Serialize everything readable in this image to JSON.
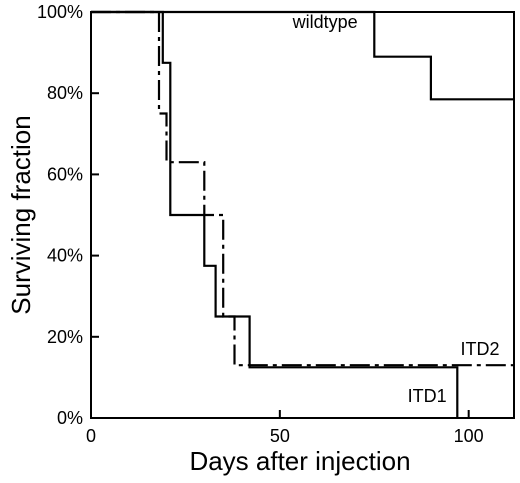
{
  "chart_data": {
    "type": "line",
    "step": true,
    "xlabel": "Days after injection",
    "ylabel": "Surviving fraction",
    "xlim": [
      0,
      112
    ],
    "ylim": [
      0,
      100
    ],
    "x_ticks": [
      {
        "value": 0,
        "label": "0"
      },
      {
        "value": 50,
        "label": "50"
      },
      {
        "value": 100,
        "label": "100"
      }
    ],
    "y_ticks": [
      {
        "value": 0,
        "label": "0%"
      },
      {
        "value": 20,
        "label": "20%"
      },
      {
        "value": 40,
        "label": "40%"
      },
      {
        "value": 60,
        "label": "60%"
      },
      {
        "value": 80,
        "label": "80%"
      },
      {
        "value": 100,
        "label": "100%"
      }
    ],
    "grid": false,
    "legend": "none",
    "series": [
      {
        "name": "wildtype",
        "style": "solid",
        "color": "#000000",
        "x": [
          0,
          75,
          75,
          90,
          90,
          112
        ],
        "y": [
          100,
          100,
          89,
          89,
          78.5,
          78.5
        ]
      },
      {
        "name": "ITD1",
        "style": "solid",
        "color": "#000000",
        "x": [
          0,
          19,
          19,
          21,
          21,
          30,
          30,
          33,
          33,
          42,
          42,
          97,
          97
        ],
        "y": [
          100,
          100,
          87.5,
          87.5,
          50,
          50,
          37.5,
          37.5,
          25,
          25,
          12.5,
          12.5,
          0
        ]
      },
      {
        "name": "ITD2",
        "style": "dashed",
        "color": "#000000",
        "x": [
          0,
          18,
          18,
          20,
          20,
          23,
          23,
          30,
          30,
          35,
          35,
          38,
          38,
          112
        ],
        "y": [
          100,
          100,
          75,
          75,
          63,
          63,
          63,
          63,
          50,
          50,
          25,
          25,
          13,
          13
        ]
      }
    ],
    "annotations": [
      {
        "text": "wildtype",
        "x": 62,
        "y": 96
      },
      {
        "text": "ITD2",
        "x": 103,
        "y": 15.5
      },
      {
        "text": "ITD1",
        "x": 89,
        "y": 4
      }
    ]
  }
}
